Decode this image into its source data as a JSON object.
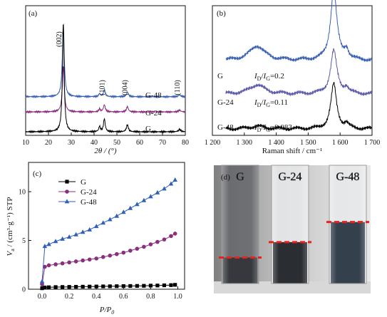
{
  "chart_data": [
    {
      "panel": "(a)",
      "type": "line",
      "xlabel": "2θ / (°)",
      "xlim": [
        10,
        80
      ],
      "xticks": [
        10,
        20,
        30,
        40,
        50,
        60,
        70,
        80
      ],
      "peak_labels": [
        {
          "text": "(002)",
          "x": 26.5
        },
        {
          "text": "(101)",
          "x": 44.5
        },
        {
          "text": "(004)",
          "x": 54.6
        },
        {
          "text": "(110)",
          "x": 77.5
        }
      ],
      "series": [
        {
          "name": "G-48",
          "color": "#3a5fb0",
          "offset": 3,
          "peaks": [
            [
              26.5,
              6.1,
              0.5
            ],
            [
              42.4,
              0.25,
              0.4
            ],
            [
              44.5,
              0.6,
              0.5
            ],
            [
              54.6,
              0.4,
              0.5
            ],
            [
              77.5,
              0.15,
              0.6
            ]
          ]
        },
        {
          "name": "G-24",
          "color": "#8a2f7e",
          "offset": 1.7,
          "peaks": [
            [
              26.5,
              3.9,
              0.5
            ],
            [
              42.4,
              0.25,
              0.4
            ],
            [
              44.5,
              0.6,
              0.5
            ],
            [
              54.6,
              0.45,
              0.5
            ],
            [
              77.5,
              0.15,
              0.6
            ]
          ]
        },
        {
          "name": "G",
          "color": "#000000",
          "offset": 0,
          "peaks": [
            [
              26.5,
              9.3,
              0.45
            ],
            [
              42.4,
              0.45,
              0.4
            ],
            [
              44.5,
              1.1,
              0.45
            ],
            [
              54.6,
              0.6,
              0.5
            ],
            [
              77.5,
              0.2,
              0.6
            ]
          ]
        }
      ]
    },
    {
      "panel": "(b)",
      "type": "line",
      "xlabel": "Raman shift / cm⁻¹",
      "xlim": [
        1200,
        1700
      ],
      "xticks": [
        1200,
        1300,
        1400,
        1500,
        1600,
        1700
      ],
      "xtick_labels": [
        "1 200",
        "1 300",
        "1 400",
        "1 500",
        "1 600",
        "1 700"
      ],
      "series": [
        {
          "name": "G",
          "ratio_value": "0.2",
          "color": "#3a5fb0",
          "offset": 5.2,
          "peaks": [
            [
              1340,
              1.1,
              28
            ],
            [
              1580,
              5.3,
              12
            ],
            [
              1620,
              0.7,
              8
            ]
          ]
        },
        {
          "name": "G-24",
          "ratio_value": "0.11",
          "color": "#5a5aa8",
          "offset": 2.65,
          "peaks": [
            [
              1340,
              0.7,
              28
            ],
            [
              1580,
              3.3,
              12
            ],
            [
              1620,
              0.45,
              8
            ]
          ]
        },
        {
          "name": "G-48",
          "ratio_value": "0.083",
          "color": "#000000",
          "offset": 0,
          "peaks": [
            [
              1340,
              0.2,
              28
            ],
            [
              1580,
              3.4,
              11
            ],
            [
              1620,
              0.35,
              8
            ]
          ]
        }
      ]
    },
    {
      "panel": "(c)",
      "type": "line",
      "xlabel_main": "P",
      "xlabel_over": "/P",
      "xlabel_sub": "0",
      "ylabel_main": "V",
      "ylabel_sub": "a",
      "ylabel_rest": " / (cm³·g⁻¹) STP",
      "xlim": [
        -0.1,
        1.05
      ],
      "ylim": [
        0,
        13
      ],
      "xticks": [
        0.0,
        0.2,
        0.4,
        0.6,
        0.8,
        1.0
      ],
      "xtick_labels": [
        "0.0",
        "0.2",
        "0.4",
        "0.6",
        "0.8",
        "1.0"
      ],
      "yticks": [
        0,
        5,
        10
      ],
      "legend": "top-left",
      "series": [
        {
          "name": "G",
          "color": "#000000",
          "marker": "square",
          "x": [
            0.0,
            0.02,
            0.05,
            0.1,
            0.15,
            0.2,
            0.25,
            0.3,
            0.35,
            0.4,
            0.45,
            0.5,
            0.55,
            0.6,
            0.65,
            0.7,
            0.75,
            0.8,
            0.85,
            0.9,
            0.95,
            0.98
          ],
          "y": [
            0.1,
            0.18,
            0.2,
            0.22,
            0.23,
            0.24,
            0.25,
            0.26,
            0.27,
            0.28,
            0.29,
            0.3,
            0.31,
            0.32,
            0.33,
            0.34,
            0.35,
            0.37,
            0.38,
            0.4,
            0.42,
            0.45
          ]
        },
        {
          "name": "G-24",
          "color": "#8a2f7e",
          "marker": "circle",
          "x": [
            0.0,
            0.02,
            0.05,
            0.1,
            0.15,
            0.2,
            0.25,
            0.3,
            0.35,
            0.4,
            0.45,
            0.5,
            0.55,
            0.6,
            0.65,
            0.7,
            0.75,
            0.8,
            0.85,
            0.9,
            0.95,
            0.98
          ],
          "y": [
            0.5,
            2.3,
            2.45,
            2.55,
            2.65,
            2.75,
            2.85,
            2.95,
            3.05,
            3.15,
            3.3,
            3.45,
            3.6,
            3.75,
            3.95,
            4.15,
            4.35,
            4.6,
            4.85,
            5.1,
            5.45,
            5.7
          ]
        },
        {
          "name": "G-48",
          "color": "#2f5fb6",
          "marker": "triangle",
          "x": [
            0.0,
            0.02,
            0.05,
            0.1,
            0.15,
            0.2,
            0.25,
            0.3,
            0.35,
            0.4,
            0.45,
            0.5,
            0.55,
            0.6,
            0.65,
            0.7,
            0.75,
            0.8,
            0.85,
            0.9,
            0.95,
            0.98
          ],
          "y": [
            0.8,
            4.4,
            4.6,
            4.9,
            5.15,
            5.35,
            5.6,
            5.85,
            6.1,
            6.45,
            6.8,
            7.15,
            7.5,
            7.9,
            8.3,
            8.7,
            9.1,
            9.5,
            9.9,
            10.3,
            10.8,
            11.2
          ]
        }
      ]
    }
  ],
  "photo": {
    "panel": "(d)",
    "tubes": [
      {
        "label": "G",
        "fill_level": 0.22,
        "color": "#2b2e33"
      },
      {
        "label": "G-24",
        "fill_level": 0.35,
        "color": "#1f2226"
      },
      {
        "label": "G-48",
        "fill_level": 0.52,
        "color": "#2a3644"
      }
    ],
    "marker_color": "#e8211c"
  }
}
